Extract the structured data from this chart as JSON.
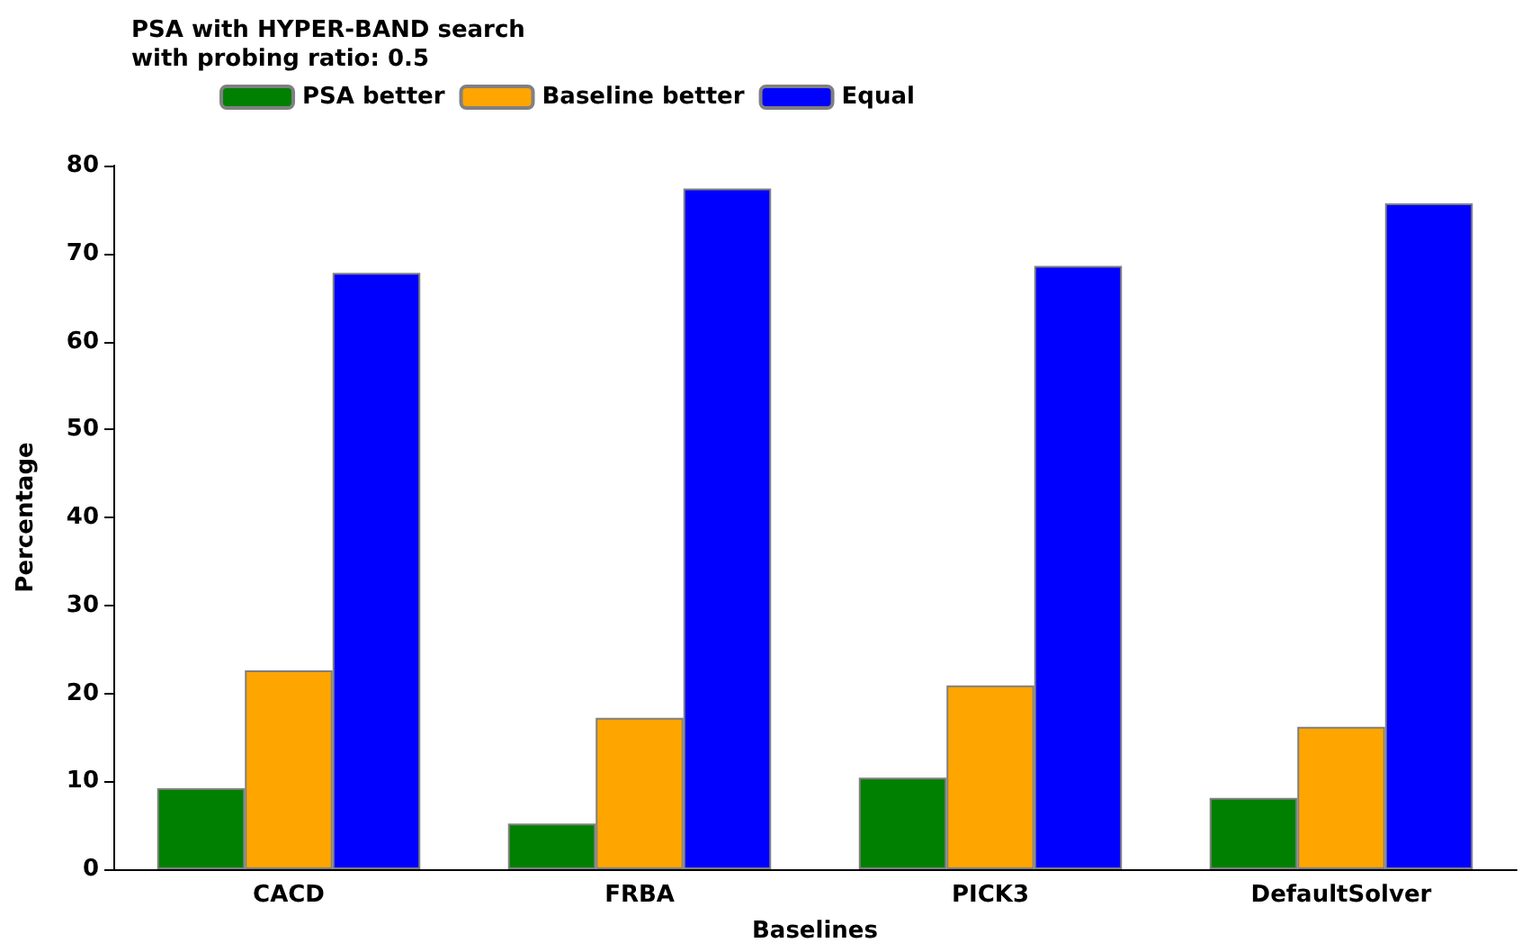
{
  "chart_data": {
    "type": "bar",
    "xlabel": "Baselines",
    "ylabel": "Percentage",
    "legend_title": "PSA with HYPER-BAND search\nwith probing ratio: 0.5",
    "categories": [
      "CACD",
      "FRBA",
      "PICK3",
      "DefaultSolver"
    ],
    "series": [
      {
        "name": "PSA better",
        "color": "#008000",
        "values": [
          9.2,
          5.2,
          10.4,
          8.1
        ]
      },
      {
        "name": "Baseline better",
        "color": "#ffa500",
        "values": [
          22.6,
          17.2,
          20.9,
          16.2
        ]
      },
      {
        "name": "Equal",
        "color": "#0000ff",
        "values": [
          67.8,
          77.4,
          68.6,
          75.7
        ]
      }
    ],
    "ylim": [
      0,
      80
    ],
    "yticks": [
      0,
      10,
      20,
      30,
      40,
      50,
      60,
      70,
      80
    ],
    "grid": false,
    "legend": "top left"
  }
}
